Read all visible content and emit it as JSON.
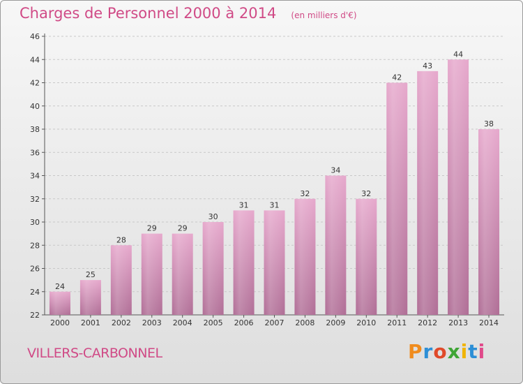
{
  "chart_data": {
    "type": "bar",
    "title": "Charges de Personnel 2000 à 2014",
    "subtitle": "(en milliers d'€)",
    "categories": [
      "2000",
      "2001",
      "2002",
      "2003",
      "2004",
      "2005",
      "2006",
      "2007",
      "2008",
      "2009",
      "2010",
      "2011",
      "2012",
      "2013",
      "2014"
    ],
    "values": [
      24,
      25,
      28,
      29,
      29,
      30,
      31,
      31,
      32,
      34,
      32,
      42,
      43,
      44,
      38
    ],
    "ylim": [
      22,
      46
    ],
    "yticks": [
      22,
      24,
      26,
      28,
      30,
      32,
      34,
      36,
      38,
      40,
      42,
      44,
      46
    ],
    "grid": true,
    "bar_color": "#d98cb8"
  },
  "footer": {
    "commune": "VILLERS-CARBONNEL",
    "logo_letters": [
      "P",
      "r",
      "o",
      "x",
      "i",
      "t",
      "i"
    ],
    "logo_colors": [
      "#f08c1e",
      "#2d8fd6",
      "#e04a2a",
      "#3fa535",
      "#f0b400",
      "#2d8fd6",
      "#e04a8a"
    ]
  }
}
